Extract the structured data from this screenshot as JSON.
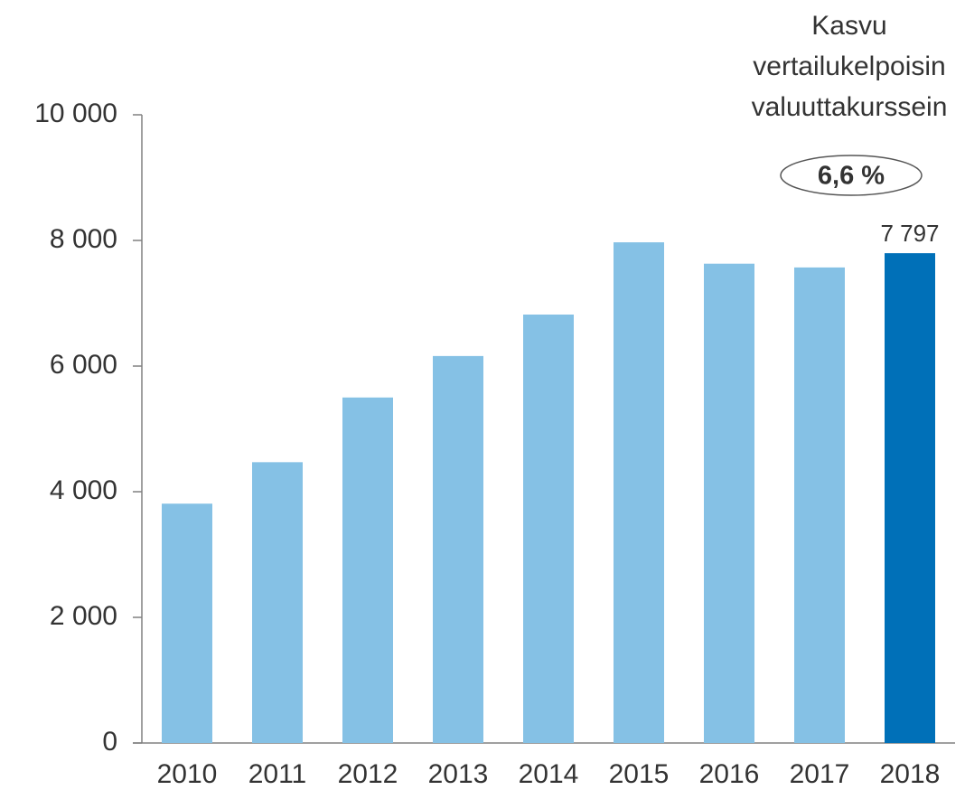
{
  "chart_data": {
    "type": "bar",
    "categories": [
      "2010",
      "2011",
      "2012",
      "2013",
      "2014",
      "2015",
      "2016",
      "2017",
      "2018"
    ],
    "values": [
      3810,
      4470,
      5500,
      6160,
      6820,
      7970,
      7630,
      7570,
      7797
    ],
    "value_labels": [
      null,
      null,
      null,
      null,
      null,
      null,
      null,
      null,
      "7 797"
    ],
    "colors": [
      "#85c1e5",
      "#85c1e5",
      "#85c1e5",
      "#85c1e5",
      "#85c1e5",
      "#85c1e5",
      "#85c1e5",
      "#85c1e5",
      "#0070b8"
    ],
    "ylim": [
      0,
      10000
    ],
    "yticks": [
      0,
      {
        "value": 2000,
        "label": "2 000"
      },
      {
        "value": 4000,
        "label": "4 000"
      },
      {
        "value": 6000,
        "label": "6 000"
      },
      {
        "value": 8000,
        "label": "8 000"
      },
      {
        "value": 10000,
        "label": "10 000"
      }
    ],
    "grid": false,
    "annotation": {
      "lines": [
        "Kasvu",
        "vertailukelpoisin",
        "valuuttakurssein"
      ],
      "highlight": "6,6 %"
    }
  }
}
